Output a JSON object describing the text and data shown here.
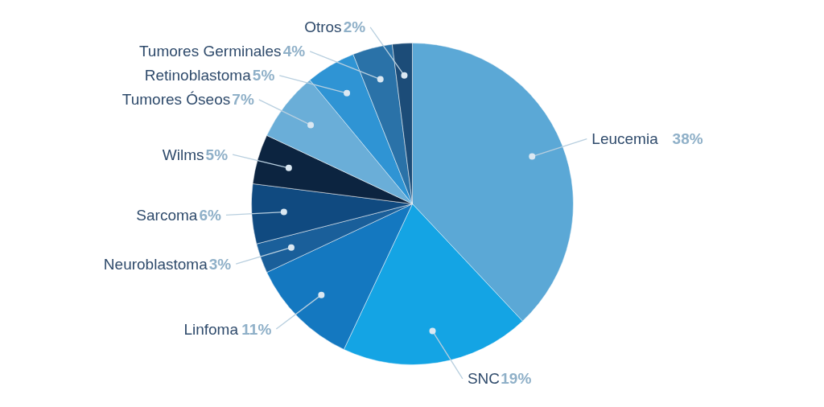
{
  "chart_data": {
    "type": "pie",
    "categories": [
      "Leucemia",
      "SNC",
      "Linfoma",
      "Neuroblastoma",
      "Sarcoma",
      "Wilms",
      "Tumores Óseos",
      "Retinoblastoma",
      "Tumores Germinales",
      "Otros"
    ],
    "values": [
      38,
      19,
      11,
      3,
      6,
      5,
      7,
      5,
      4,
      2
    ],
    "value_labels": [
      "38%",
      "19%",
      "11%",
      "3%",
      "6%",
      "5%",
      "7%",
      "5%",
      "4%",
      "2%"
    ],
    "colors": [
      "#5ba8d6",
      "#14a4e4",
      "#1478c0",
      "#1a5f9a",
      "#104a80",
      "#0c2440",
      "#6aaed8",
      "#2f94d4",
      "#2a72a8",
      "#1c4c78"
    ]
  }
}
